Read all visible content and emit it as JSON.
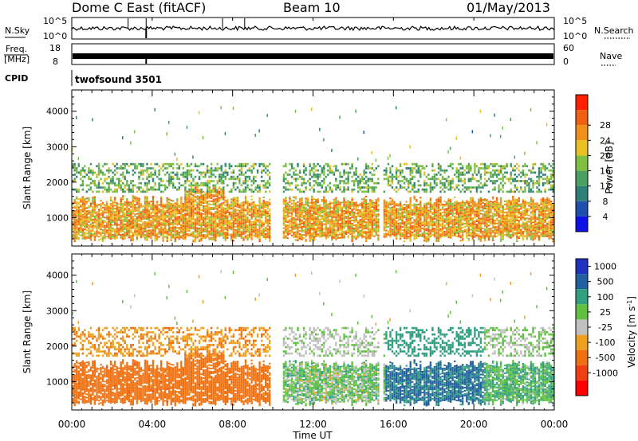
{
  "header": {
    "station": "Dome C East (fitACF)",
    "beam": "Beam 10",
    "date": "01/May/2013"
  },
  "summary_panels": {
    "nsky_label": "N.Sky",
    "nsky_ticks": [
      "10^5",
      "10^0"
    ],
    "nsearch_label": "N.Search",
    "nsearch_ticks": [
      "10^5",
      "10^0"
    ],
    "freq_label_line1": "Freq.",
    "freq_label_line2": "[MHz]",
    "freq_ticks": [
      "18",
      "8"
    ],
    "nave_label": "Nave",
    "nave_ticks": [
      "60",
      "0"
    ],
    "cpid_label": "CPID",
    "cpid_value": "twofsound 3501"
  },
  "chart_data": [
    {
      "type": "heatmap",
      "name": "power",
      "ylabel": "Slant Range [km]",
      "yticks": [
        "1000",
        "2000",
        "3000",
        "4000"
      ],
      "ylim": [
        200,
        4600
      ],
      "xlim_hours": [
        0,
        24
      ],
      "colorbar": {
        "label": "Power [dB]",
        "ticks": [
          "4",
          "8",
          "12",
          "16",
          "20",
          "24",
          "28"
        ],
        "range": [
          0,
          32
        ],
        "colors": [
          "#1010e8",
          "#1f4fb0",
          "#2e7f78",
          "#4aa060",
          "#80c040",
          "#e8c020",
          "#f09018",
          "#f06010",
          "#ff2000"
        ]
      },
      "main_echo_band_km": [
        500,
        1600
      ],
      "main_echo_power_db": 28,
      "upper_echo_band_km": [
        1700,
        2500
      ],
      "upper_echo_power_db": 14,
      "data_gaps_hours": [
        [
          9.8,
          10.4
        ],
        [
          15.2,
          15.4
        ]
      ]
    },
    {
      "type": "heatmap",
      "name": "velocity",
      "ylabel": "Slant Range [km]",
      "yticks": [
        "1000",
        "2000",
        "3000",
        "4000"
      ],
      "ylim": [
        200,
        4600
      ],
      "xlim_hours": [
        0,
        24
      ],
      "colorbar": {
        "label": "Velocity",
        "unit": "[m s",
        "unit_sup": "-1",
        "unit_end": "]",
        "ticks": [
          "1000",
          "500",
          "100",
          "25",
          "-25",
          "-100",
          "-500",
          "-1000"
        ],
        "colors": [
          "#2030c0",
          "#2060a0",
          "#30a080",
          "#60c040",
          "#c0c0c0",
          "#f0a020",
          "#f07010",
          "#f04010",
          "#ff0000"
        ]
      },
      "velocity_segments": [
        {
          "hours": [
            0,
            9.8
          ],
          "dominant_velocity_ms": -300
        },
        {
          "hours": [
            10.4,
            15.5
          ],
          "dominant_velocity_ms": 50
        },
        {
          "hours": [
            15.5,
            20.5
          ],
          "dominant_velocity_ms": 600
        },
        {
          "hours": [
            20.5,
            24
          ],
          "dominant_velocity_ms": 100
        }
      ]
    }
  ],
  "xaxis": {
    "label": "Time UT",
    "ticks": [
      "00:00",
      "04:00",
      "08:00",
      "12:00",
      "16:00",
      "20:00",
      "00:00"
    ]
  },
  "colors": {
    "axis": "#000000",
    "background": "#ffffff"
  }
}
